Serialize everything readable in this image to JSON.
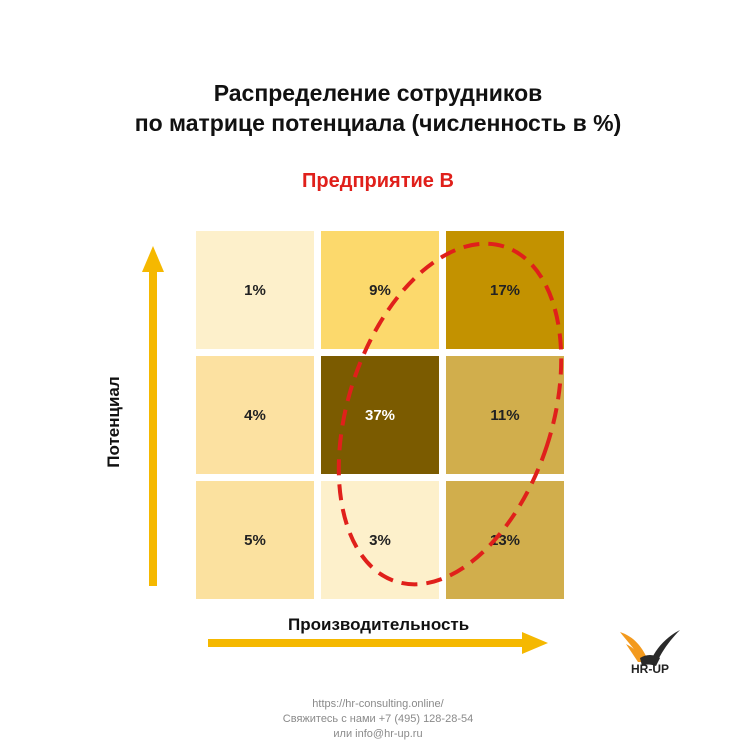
{
  "title_lines": [
    "Распределение сотрудников",
    "по матрице потенциала (численность в %)"
  ],
  "subtitle": "Предприятие В",
  "chart_data": {
    "type": "heatmap",
    "title": "Распределение сотрудников по матрице потенциала (численность в %)",
    "subtitle": "Предприятие В",
    "xlabel": "Производительность",
    "ylabel": "Потенциал",
    "unit": "%",
    "rows": [
      {
        "values": [
          1,
          9,
          17
        ],
        "labels": [
          "1%",
          "9%",
          "17%"
        ]
      },
      {
        "values": [
          4,
          37,
          11
        ],
        "labels": [
          "4%",
          "37%",
          "11%"
        ]
      },
      {
        "values": [
          5,
          3,
          13
        ],
        "labels": [
          "5%",
          "3%",
          "13%"
        ]
      }
    ],
    "colors": [
      [
        "#fdf0cb",
        "#fcd96c",
        "#c39200"
      ],
      [
        "#fce1a1",
        "#7b5b00",
        "#d1ae4c"
      ],
      [
        "#fbe19f",
        "#fdf0cb",
        "#d1ae4c"
      ]
    ],
    "highlight": {
      "shape": "dashed-ellipse",
      "color": "#e0201b"
    },
    "arrow_color": "#f5b800"
  },
  "logo": {
    "text": "HR-UP",
    "colors": [
      "#f39a1e",
      "#2a2a2a"
    ]
  },
  "footer": {
    "lines": [
      "https://hr-consulting.online/",
      "Свяжитесь с нами +7 (495) 128-28-54",
      "или  info@hr-up.ru"
    ]
  }
}
